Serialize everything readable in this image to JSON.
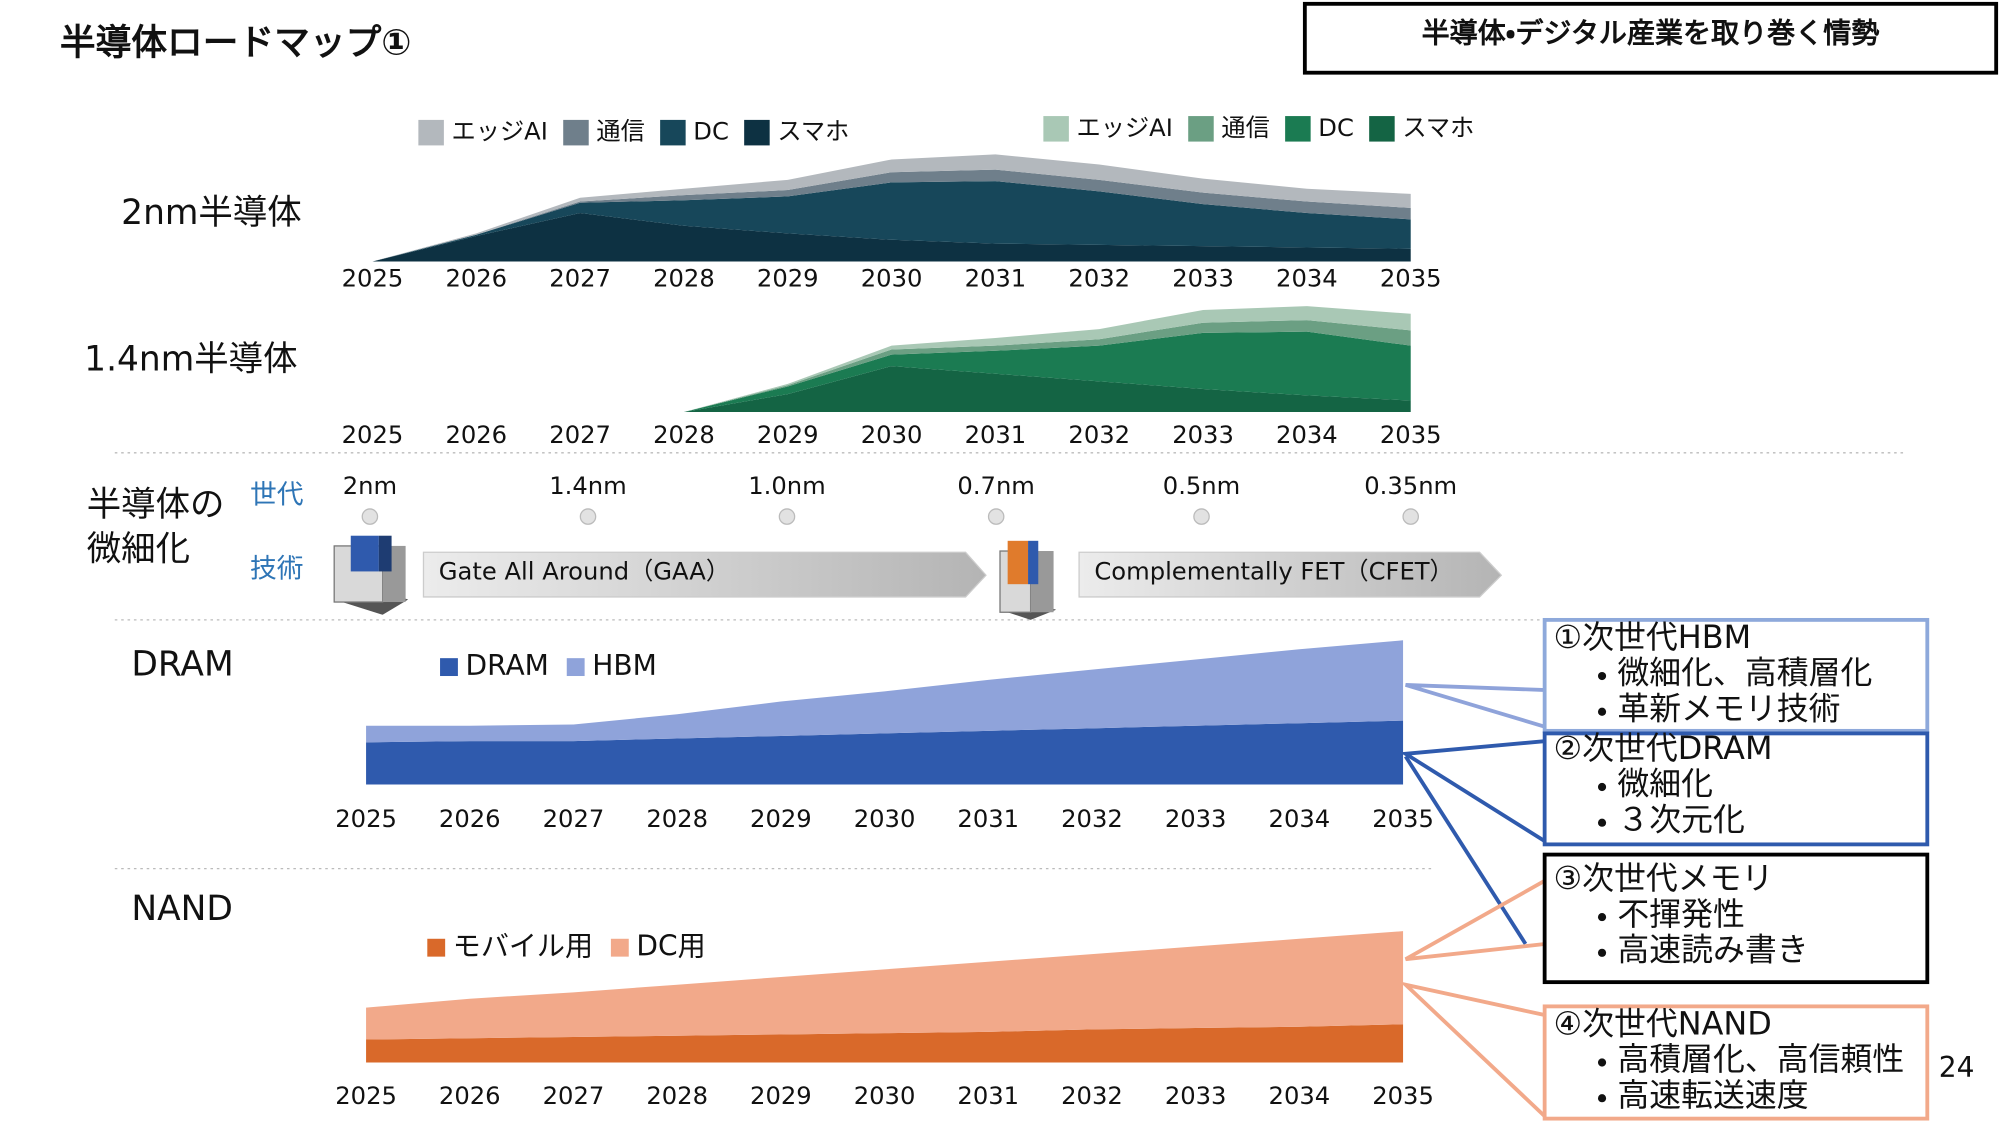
{
  "header": {
    "title": "半導体ロードマップ①",
    "section": "半導体・デジタル産業を取り巻く情勢"
  },
  "chart_data": [
    {
      "type": "area",
      "stacked": true,
      "title": "2nm半導体",
      "x": [
        2025,
        2026,
        2027,
        2028,
        2029,
        2030,
        2031,
        2032,
        2033,
        2034,
        2035
      ],
      "xlim": [
        2025,
        2035
      ],
      "xticks": [
        2025,
        2026,
        2027,
        2028,
        2029,
        2030,
        2031,
        2032,
        2033,
        2034,
        2035
      ],
      "ylim": [
        0,
        100
      ],
      "series": [
        {
          "name": "エッジAI",
          "color": "#b3b8bd",
          "values": [
            0,
            1,
            3,
            5,
            8,
            10,
            12,
            12,
            11,
            10,
            11
          ]
        },
        {
          "name": "通信",
          "color": "#6f7f8b",
          "values": [
            0,
            0,
            1,
            4,
            5,
            8,
            9,
            9,
            9,
            9,
            9
          ]
        },
        {
          "name": "DC",
          "color": "#17475a",
          "values": [
            0,
            1,
            8,
            20,
            29,
            45,
            49,
            42,
            33,
            27,
            23
          ]
        },
        {
          "name": "スマホ",
          "color": "#0d3142",
          "values": [
            0,
            20,
            38,
            28,
            22,
            17,
            14,
            13,
            12,
            11,
            10
          ]
        }
      ]
    },
    {
      "type": "area",
      "stacked": true,
      "title": "1.4nm半導体",
      "x": [
        2025,
        2026,
        2027,
        2028,
        2029,
        2030,
        2031,
        2032,
        2033,
        2034,
        2035
      ],
      "xlim": [
        2025,
        2035
      ],
      "xticks": [
        2025,
        2026,
        2027,
        2028,
        2029,
        2030,
        2031,
        2032,
        2033,
        2034,
        2035
      ],
      "ylim": [
        0,
        100
      ],
      "series": [
        {
          "name": "エッジAI",
          "color": "#a9c8b5",
          "values": [
            0,
            0,
            0,
            0,
            1,
            3,
            6,
            8,
            10,
            11,
            13
          ]
        },
        {
          "name": "通信",
          "color": "#6b9f83",
          "values": [
            0,
            0,
            0,
            0,
            1,
            4,
            4,
            5,
            8,
            9,
            12
          ]
        },
        {
          "name": "DC",
          "color": "#1b7b52",
          "values": [
            0,
            0,
            0,
            0,
            6,
            9,
            18,
            28,
            44,
            50,
            43
          ]
        },
        {
          "name": "スマホ",
          "color": "#146444",
          "values": [
            0,
            0,
            0,
            0,
            14,
            36,
            30,
            24,
            18,
            13,
            9
          ]
        }
      ]
    },
    {
      "type": "area",
      "stacked": true,
      "title": "DRAM",
      "x": [
        2025,
        2026,
        2027,
        2028,
        2029,
        2030,
        2031,
        2032,
        2033,
        2034,
        2035
      ],
      "xlim": [
        2025,
        2035
      ],
      "xticks": [
        2025,
        2026,
        2027,
        2028,
        2029,
        2030,
        2031,
        2032,
        2033,
        2034,
        2035
      ],
      "ylim": [
        0,
        120
      ],
      "series": [
        {
          "name": "DRAM",
          "color": "#2f5aad",
          "values": [
            33,
            34,
            34,
            36,
            38,
            40,
            42,
            44,
            46,
            48,
            50
          ]
        },
        {
          "name": "HBM",
          "color": "#8fa3da",
          "values": [
            13,
            12,
            13,
            19,
            27,
            33,
            40,
            46,
            52,
            58,
            63
          ]
        }
      ]
    },
    {
      "type": "area",
      "stacked": true,
      "title": "NAND",
      "x": [
        2025,
        2026,
        2027,
        2028,
        2029,
        2030,
        2031,
        2032,
        2033,
        2034,
        2035
      ],
      "xlim": [
        2025,
        2035
      ],
      "xticks": [
        2025,
        2026,
        2027,
        2028,
        2029,
        2030,
        2031,
        2032,
        2033,
        2034,
        2035
      ],
      "ylim": [
        0,
        110
      ],
      "series": [
        {
          "name": "モバイル用",
          "color": "#d9692a",
          "values": [
            18,
            19,
            20,
            21,
            22,
            23,
            24,
            26,
            27,
            28,
            30
          ]
        },
        {
          "name": "DC用",
          "color": "#f2a98a",
          "values": [
            25,
            31,
            35,
            40,
            45,
            50,
            55,
            59,
            64,
            69,
            73
          ]
        }
      ]
    }
  ],
  "miniaturization": {
    "label_lines": [
      "半導体の",
      "微細化"
    ],
    "generation_label": "世代",
    "technology_label": "技術",
    "generations": [
      "2nm",
      "1.4nm",
      "1.0nm",
      "0.7nm",
      "0.5nm",
      "0.35nm"
    ],
    "technologies": [
      "Gate All Around（GAA）",
      "Complementally FET（CFET）"
    ]
  },
  "callouts": [
    {
      "title": "①次世代HBM",
      "items": [
        "微細化、高積層化",
        "革新メモリ技術"
      ]
    },
    {
      "title": "②次世代DRAM",
      "items": [
        "微細化",
        "３次元化"
      ]
    },
    {
      "title": "③次世代メモリ",
      "items": [
        "不揮発性",
        "高速読み書き"
      ]
    },
    {
      "title": "④次世代NAND",
      "items": [
        "高積層化、高信頼性",
        "高速転送速度"
      ]
    }
  ],
  "page_number": "24"
}
